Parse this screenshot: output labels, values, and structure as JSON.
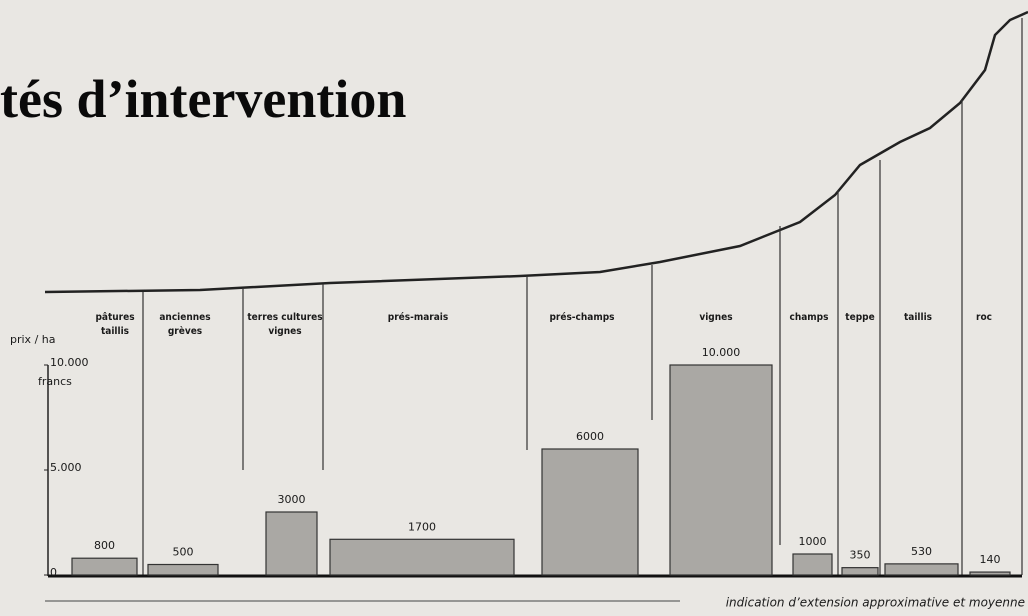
{
  "chart_data": {
    "type": "bar",
    "title": "tés d’intervention",
    "y_label": "prix / ha",
    "y_unit": "francs",
    "categories": [
      "pâtures taillis",
      "anciennes grèves",
      "terres cultures vignes",
      "prés-marais",
      "prés-champs",
      "vignes",
      "champs",
      "teppe",
      "taillis",
      "roc"
    ],
    "values": [
      800,
      500,
      3000,
      1700,
      6000,
      10000,
      1000,
      350,
      530,
      140
    ],
    "value_labels": [
      "800",
      "500",
      "3000",
      "1700",
      "6000",
      "10.000",
      "1000",
      "350",
      "530",
      "140"
    ],
    "color": "#aaa8a4",
    "ylim": [
      0,
      10000
    ],
    "yticks": [
      0,
      {
        "value": 5000,
        "label": "5.000"
      },
      {
        "value": 10000,
        "label": "10.000"
      }
    ],
    "note": "indication d’extension approximative et moyenne"
  }
}
